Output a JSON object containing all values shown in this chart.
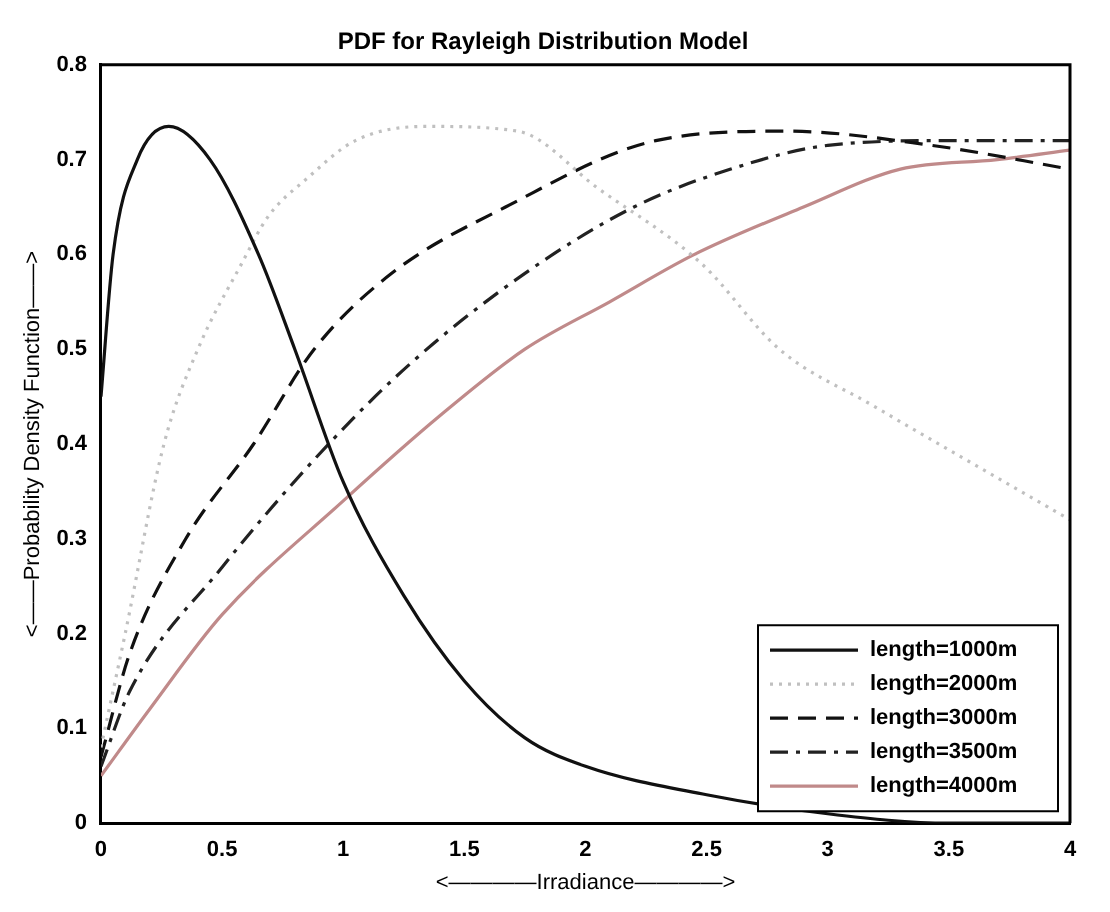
{
  "chart_data": {
    "type": "line",
    "title": "PDF for Rayleigh Distribution Model",
    "xlabel": "<————Irradiance————>",
    "ylabel": "<——Probability Density Function——>",
    "xlim": [
      0,
      4
    ],
    "xticks": [
      0,
      0.5,
      1,
      1.5,
      2,
      2.5,
      3,
      3.5,
      4
    ],
    "ylim": [
      0,
      0.8
    ],
    "yticks": [
      0,
      0.1,
      0.2,
      0.3,
      0.4,
      0.5,
      0.6,
      0.7,
      0.8
    ],
    "grid": false,
    "legend": "bottom right",
    "marker": "none",
    "series": [
      {
        "name": "length=1000m",
        "color": "#111111",
        "line_style": "solid",
        "x": [
          0,
          0.05,
          0.15,
          0.28,
          0.45,
          0.65,
          0.8,
          1,
          1.25,
          1.5,
          1.75,
          2,
          2.5,
          3,
          3.5,
          4
        ],
        "values": [
          0.45,
          0.6,
          0.7,
          0.735,
          0.7,
          0.6,
          0.5,
          0.36,
          0.24,
          0.15,
          0.09,
          0.06,
          0.03,
          0.01,
          0,
          0
        ]
      },
      {
        "name": "length=2000m",
        "color": "#c0c0c0",
        "line_style": "dotted",
        "x": [
          0,
          0.1,
          0.26,
          0.4,
          0.58,
          0.69,
          0.85,
          1.05,
          1.34,
          1.72,
          2.05,
          2.48,
          2.8,
          3.19,
          3.56,
          4
        ],
        "values": [
          0.08,
          0.2,
          0.4,
          0.5,
          0.59,
          0.64,
          0.68,
          0.72,
          0.735,
          0.73,
          0.67,
          0.59,
          0.5,
          0.44,
          0.385,
          0.32
        ]
      },
      {
        "name": "length=3000m",
        "color": "#111111",
        "line_style": "dashed",
        "x": [
          0,
          0.12,
          0.35,
          0.63,
          0.88,
          1.2,
          1.67,
          2.29,
          2.83,
          3.43,
          4
        ],
        "values": [
          0.07,
          0.18,
          0.3,
          0.4,
          0.5,
          0.58,
          0.65,
          0.72,
          0.73,
          0.715,
          0.69
        ]
      },
      {
        "name": "length=3500m",
        "color": "#222222",
        "line_style": "dashdot",
        "x": [
          0,
          0.12,
          0.5,
          0.94,
          1.3,
          1.75,
          2.2,
          2.6,
          3,
          3.5,
          4
        ],
        "values": [
          0.06,
          0.14,
          0.27,
          0.4,
          0.49,
          0.58,
          0.65,
          0.69,
          0.715,
          0.72,
          0.72
        ]
      },
      {
        "name": "length=4000m",
        "color": "#c08a8a",
        "line_style": "solid",
        "x": [
          0,
          0.2,
          0.5,
          1,
          1.4,
          1.75,
          2.1,
          2.45,
          2.9,
          3.3,
          3.7,
          4
        ],
        "values": [
          0.05,
          0.12,
          0.22,
          0.34,
          0.43,
          0.5,
          0.55,
          0.6,
          0.65,
          0.69,
          0.7,
          0.71
        ]
      }
    ]
  }
}
